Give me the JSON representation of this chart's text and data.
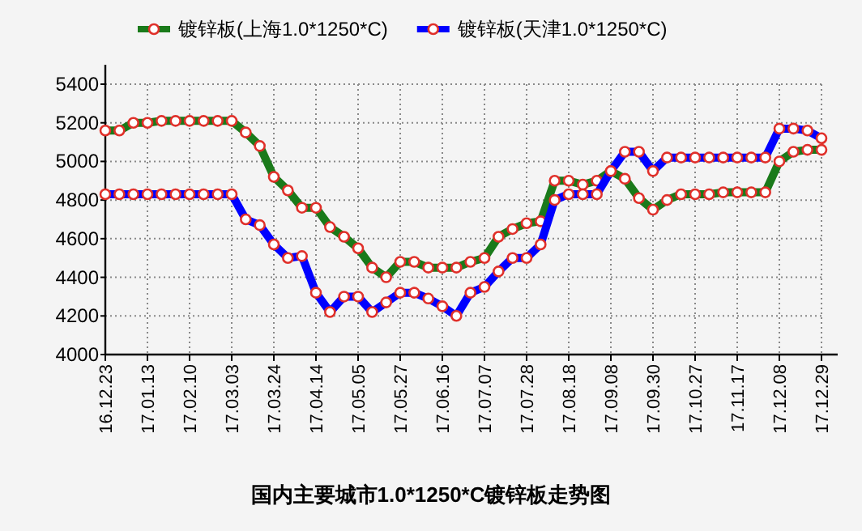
{
  "chart_data": {
    "type": "line",
    "title": "国内主要城市1.0*1250*C镀锌板走势图",
    "categories": [
      "16.12.23",
      null,
      null,
      "17.01.13",
      null,
      null,
      "17.02.10",
      null,
      null,
      "17.03.03",
      null,
      null,
      "17.03.24",
      null,
      null,
      "17.04.14",
      null,
      null,
      "17.05.05",
      null,
      null,
      "17.05.27",
      null,
      null,
      "17.06.16",
      null,
      null,
      "17.07.07",
      null,
      null,
      "17.07.28",
      null,
      null,
      "17.08.18",
      null,
      null,
      "17.09.08",
      null,
      null,
      "17.09.30",
      null,
      null,
      "17.10.27",
      null,
      null,
      "17.11.17",
      null,
      null,
      "17.12.08",
      null,
      null,
      "17.12.29"
    ],
    "series": [
      {
        "name": "镀锌板(上海1.0*1250*C)",
        "color": "#1a7a1a",
        "values": [
          5160,
          5160,
          5200,
          5200,
          5210,
          5210,
          5210,
          5210,
          5210,
          5210,
          5150,
          5080,
          4920,
          4850,
          4760,
          4760,
          4660,
          4610,
          4550,
          4450,
          4400,
          4480,
          4480,
          4450,
          4450,
          4450,
          4480,
          4500,
          4610,
          4650,
          4680,
          4690,
          4900,
          4900,
          4880,
          4900,
          4950,
          4910,
          4810,
          4750,
          4800,
          4830,
          4830,
          4830,
          4840,
          4840,
          4840,
          4840,
          5000,
          5050,
          5060,
          5060
        ]
      },
      {
        "name": "镀锌板(天津1.0*1250*C)",
        "color": "#0000ff",
        "values": [
          4830,
          4830,
          4830,
          4830,
          4830,
          4830,
          4830,
          4830,
          4830,
          4830,
          4700,
          4670,
          4570,
          4500,
          4510,
          4320,
          4220,
          4300,
          4300,
          4220,
          4270,
          4320,
          4320,
          4290,
          4250,
          4200,
          4320,
          4350,
          4430,
          4500,
          4500,
          4570,
          4800,
          4830,
          4830,
          4830,
          4950,
          5050,
          5050,
          4950,
          5020,
          5020,
          5020,
          5020,
          5020,
          5020,
          5020,
          5020,
          5170,
          5170,
          5160,
          5120
        ]
      }
    ],
    "ylim": [
      4000,
      5400
    ],
    "yticks": [
      4000,
      4200,
      4400,
      4600,
      4800,
      5000,
      5200,
      5400
    ],
    "grid": true,
    "legend": "top",
    "marker": "circle",
    "line_style": "solid"
  }
}
